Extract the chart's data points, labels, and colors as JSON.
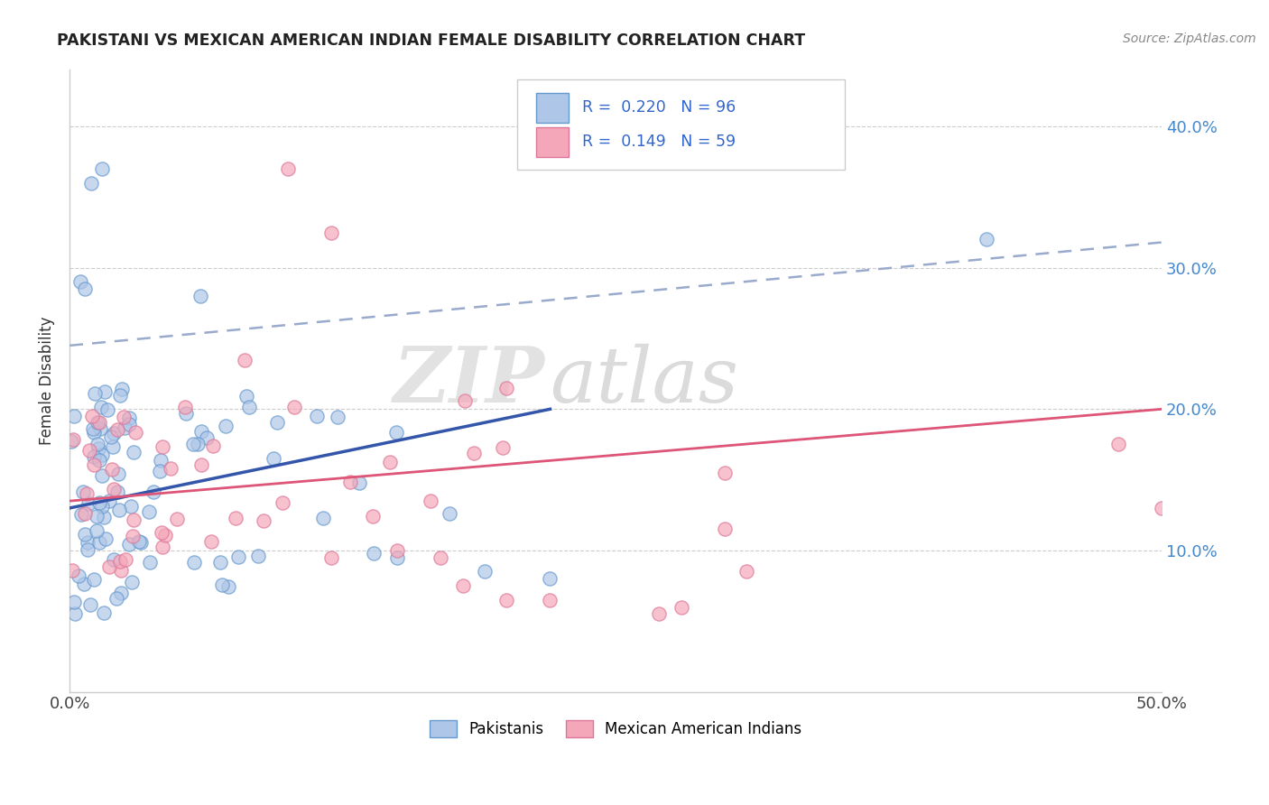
{
  "title": "PAKISTANI VS MEXICAN AMERICAN INDIAN FEMALE DISABILITY CORRELATION CHART",
  "source": "Source: ZipAtlas.com",
  "ylabel": "Female Disability",
  "xlim": [
    0.0,
    0.5
  ],
  "ylim": [
    0.0,
    0.44
  ],
  "xtick_vals": [
    0.0,
    0.1,
    0.2,
    0.3,
    0.4,
    0.5
  ],
  "xticklabels": [
    "0.0%",
    "",
    "",
    "",
    "",
    "50.0%"
  ],
  "ytick_vals": [
    0.0,
    0.1,
    0.2,
    0.3,
    0.4
  ],
  "yticklabels_right": [
    "",
    "10.0%",
    "20.0%",
    "30.0%",
    "40.0%"
  ],
  "pakistani_color": "#aec6e8",
  "pakistani_edge": "#6699cc",
  "mexican_color": "#f4a7b9",
  "mexican_edge": "#dd7799",
  "trend_blue": "#3355aa",
  "trend_pink": "#dd5577",
  "trend_gray": "#99aacc",
  "R_pakistani": 0.22,
  "N_pakistani": 96,
  "R_mexican": 0.149,
  "N_mexican": 59,
  "legend_label_pakistani": "Pakistanis",
  "legend_label_mexican": "Mexican American Indians",
  "watermark_zip": "ZIP",
  "watermark_atlas": "atlas",
  "background_color": "#ffffff",
  "grid_color": "#cccccc",
  "pak_trend_x0": 0.0,
  "pak_trend_y0": 0.13,
  "pak_trend_x1": 0.22,
  "pak_trend_y1": 0.2,
  "mex_trend_x0": 0.0,
  "mex_trend_x1": 0.5,
  "mex_trend_y0": 0.135,
  "mex_trend_y1": 0.2,
  "gray_trend_x0": 0.0,
  "gray_trend_y0": 0.245,
  "gray_trend_x1": 0.5,
  "gray_trend_y1": 0.318
}
